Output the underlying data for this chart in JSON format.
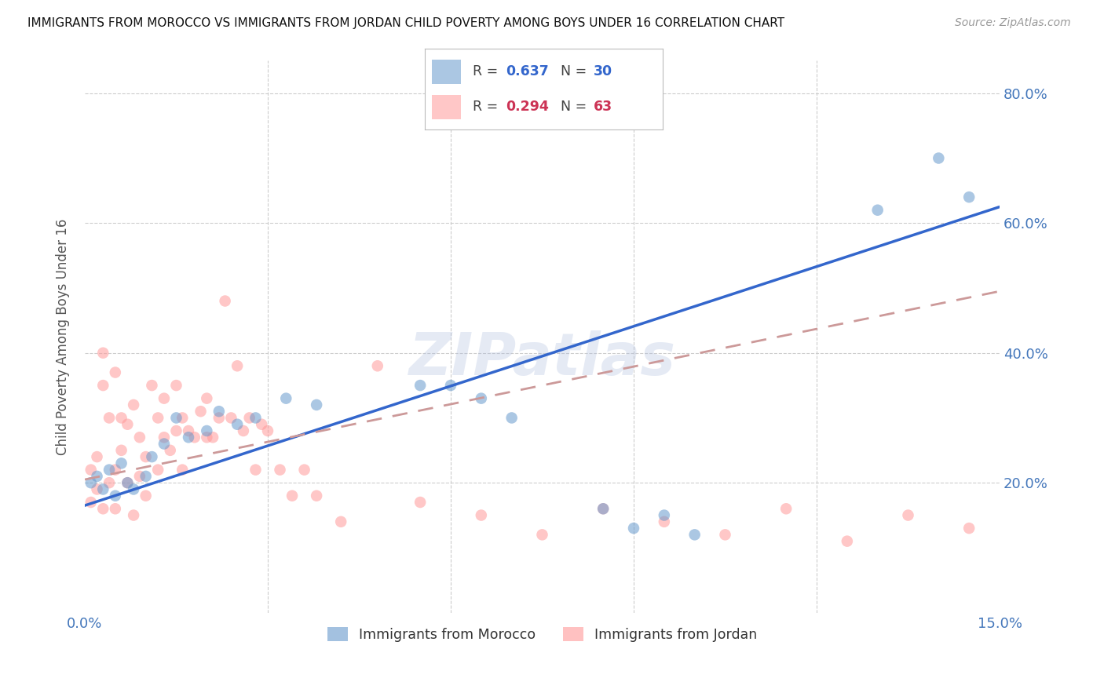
{
  "title": "IMMIGRANTS FROM MOROCCO VS IMMIGRANTS FROM JORDAN CHILD POVERTY AMONG BOYS UNDER 16 CORRELATION CHART",
  "source": "Source: ZipAtlas.com",
  "ylabel": "Child Poverty Among Boys Under 16",
  "xlim": [
    0.0,
    0.15
  ],
  "ylim": [
    0.0,
    0.85
  ],
  "xticks": [
    0.0,
    0.03,
    0.06,
    0.09,
    0.12,
    0.15
  ],
  "yticks": [
    0.0,
    0.2,
    0.4,
    0.6,
    0.8
  ],
  "ytick_labels_right": [
    "",
    "20.0%",
    "40.0%",
    "60.0%",
    "80.0%"
  ],
  "xtick_labels": [
    "0.0%",
    "",
    "",
    "",
    "",
    "15.0%"
  ],
  "morocco_color": "#6699CC",
  "jordan_color": "#FF9999",
  "morocco_line_color": "#3366CC",
  "jordan_line_color": "#CC9999",
  "morocco_R": 0.637,
  "morocco_N": 30,
  "jordan_R": 0.294,
  "jordan_N": 63,
  "watermark": "ZIPatlas",
  "morocco_x": [
    0.001,
    0.002,
    0.003,
    0.004,
    0.005,
    0.006,
    0.007,
    0.008,
    0.01,
    0.011,
    0.013,
    0.015,
    0.017,
    0.02,
    0.022,
    0.025,
    0.028,
    0.033,
    0.038,
    0.055,
    0.06,
    0.065,
    0.07,
    0.085,
    0.09,
    0.095,
    0.1,
    0.13,
    0.14,
    0.145
  ],
  "morocco_y": [
    0.2,
    0.21,
    0.19,
    0.22,
    0.18,
    0.23,
    0.2,
    0.19,
    0.21,
    0.24,
    0.26,
    0.3,
    0.27,
    0.28,
    0.31,
    0.29,
    0.3,
    0.33,
    0.32,
    0.35,
    0.35,
    0.33,
    0.3,
    0.16,
    0.13,
    0.15,
    0.12,
    0.62,
    0.7,
    0.64
  ],
  "jordan_x": [
    0.001,
    0.001,
    0.002,
    0.002,
    0.003,
    0.003,
    0.003,
    0.004,
    0.004,
    0.005,
    0.005,
    0.005,
    0.006,
    0.006,
    0.007,
    0.007,
    0.008,
    0.008,
    0.009,
    0.009,
    0.01,
    0.01,
    0.011,
    0.012,
    0.012,
    0.013,
    0.013,
    0.014,
    0.015,
    0.015,
    0.016,
    0.016,
    0.017,
    0.018,
    0.019,
    0.02,
    0.02,
    0.021,
    0.022,
    0.023,
    0.024,
    0.025,
    0.026,
    0.027,
    0.028,
    0.029,
    0.03,
    0.032,
    0.034,
    0.036,
    0.038,
    0.042,
    0.048,
    0.055,
    0.065,
    0.075,
    0.085,
    0.095,
    0.105,
    0.115,
    0.125,
    0.135,
    0.145
  ],
  "jordan_y": [
    0.22,
    0.17,
    0.19,
    0.24,
    0.35,
    0.4,
    0.16,
    0.2,
    0.3,
    0.37,
    0.22,
    0.16,
    0.25,
    0.3,
    0.29,
    0.2,
    0.32,
    0.15,
    0.27,
    0.21,
    0.24,
    0.18,
    0.35,
    0.3,
    0.22,
    0.27,
    0.33,
    0.25,
    0.28,
    0.35,
    0.3,
    0.22,
    0.28,
    0.27,
    0.31,
    0.27,
    0.33,
    0.27,
    0.3,
    0.48,
    0.3,
    0.38,
    0.28,
    0.3,
    0.22,
    0.29,
    0.28,
    0.22,
    0.18,
    0.22,
    0.18,
    0.14,
    0.38,
    0.17,
    0.15,
    0.12,
    0.16,
    0.14,
    0.12,
    0.16,
    0.11,
    0.15,
    0.13
  ]
}
